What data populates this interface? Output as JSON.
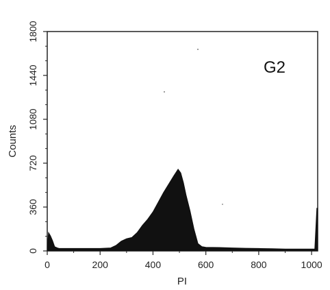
{
  "chart_data": {
    "type": "area",
    "title": "",
    "xlabel": "PI",
    "ylabel": "Counts",
    "xlim": [
      0,
      1023
    ],
    "ylim": [
      0,
      1800
    ],
    "x_ticks": [
      "0",
      "200",
      "400",
      "600",
      "800",
      "1000"
    ],
    "y_ticks": [
      "0",
      "360",
      "720",
      "1080",
      "1440",
      "1800"
    ],
    "grid": false,
    "annotations": [
      {
        "text": "G2",
        "position": "top-right"
      }
    ],
    "series": [
      {
        "x": [
          0,
          5,
          12,
          20,
          28,
          38,
          45,
          60,
          100,
          150,
          200,
          240,
          260,
          280,
          300,
          320,
          340,
          360,
          380,
          400,
          420,
          440,
          460,
          480,
          495,
          505,
          515,
          525,
          540,
          555,
          570,
          585,
          600,
          650,
          700,
          750,
          800,
          850,
          900,
          950,
          1000,
          1012,
          1020,
          1023
        ],
        "y": [
          30,
          150,
          125,
          85,
          35,
          25,
          20,
          20,
          20,
          20,
          20,
          25,
          45,
          80,
          100,
          110,
          150,
          210,
          260,
          320,
          400,
          480,
          550,
          620,
          670,
          640,
          560,
          460,
          330,
          180,
          60,
          35,
          30,
          28,
          25,
          22,
          20,
          18,
          15,
          15,
          15,
          15,
          350,
          350
        ],
        "color": "#111111"
      }
    ]
  }
}
